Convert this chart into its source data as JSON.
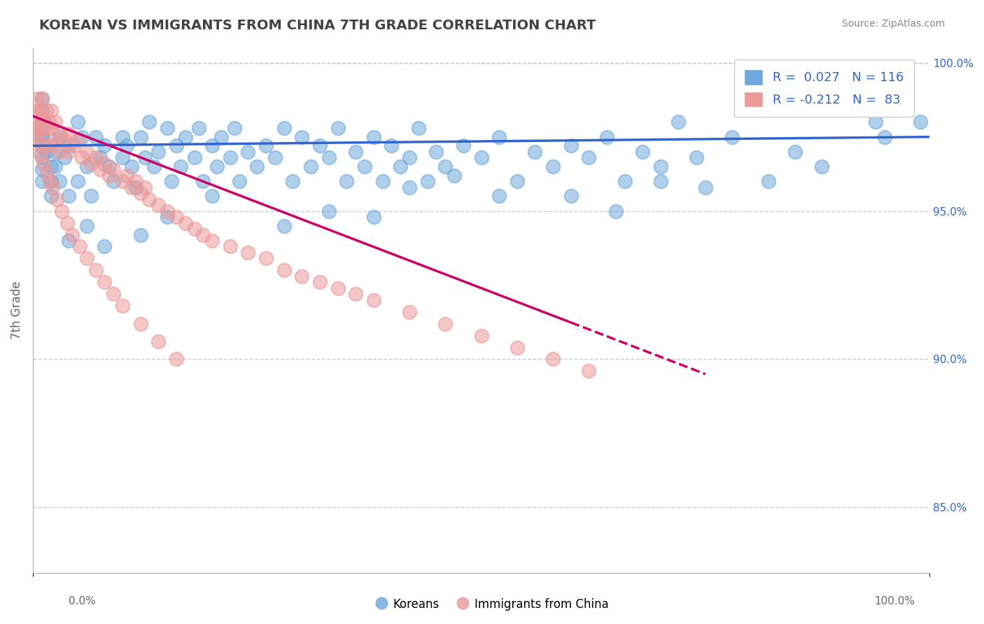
{
  "title": "KOREAN VS IMMIGRANTS FROM CHINA 7TH GRADE CORRELATION CHART",
  "source": "Source: ZipAtlas.com",
  "ylabel": "7th Grade",
  "right_yticks": [
    "85.0%",
    "90.0%",
    "95.0%",
    "100.0%"
  ],
  "right_ytick_vals": [
    0.85,
    0.9,
    0.95,
    1.0
  ],
  "blue_R": 0.027,
  "blue_N": 116,
  "pink_R": -0.212,
  "pink_N": 83,
  "blue_color": "#6fa8dc",
  "pink_color": "#ea9999",
  "blue_line_color": "#3366cc",
  "pink_line_color": "#cc0066",
  "title_color": "#434343",
  "source_color": "#888888",
  "legend_R_color": "#3366cc",
  "background_color": "#ffffff",
  "grid_color": "#cccccc",
  "dot_size": 200,
  "dot_alpha": 0.55,
  "blue_dots_x": [
    0.01,
    0.01,
    0.01,
    0.01,
    0.01,
    0.01,
    0.01,
    0.01,
    0.01,
    0.015,
    0.02,
    0.02,
    0.02,
    0.025,
    0.025,
    0.03,
    0.03,
    0.035,
    0.04,
    0.04,
    0.05,
    0.05,
    0.055,
    0.06,
    0.065,
    0.07,
    0.075,
    0.08,
    0.085,
    0.09,
    0.1,
    0.1,
    0.105,
    0.11,
    0.115,
    0.12,
    0.125,
    0.13,
    0.135,
    0.14,
    0.15,
    0.155,
    0.16,
    0.165,
    0.17,
    0.18,
    0.185,
    0.19,
    0.2,
    0.205,
    0.21,
    0.22,
    0.225,
    0.23,
    0.24,
    0.25,
    0.26,
    0.27,
    0.28,
    0.29,
    0.3,
    0.31,
    0.32,
    0.33,
    0.34,
    0.35,
    0.36,
    0.37,
    0.38,
    0.39,
    0.4,
    0.41,
    0.42,
    0.43,
    0.44,
    0.45,
    0.46,
    0.48,
    0.5,
    0.52,
    0.54,
    0.56,
    0.58,
    0.6,
    0.62,
    0.64,
    0.66,
    0.68,
    0.7,
    0.72,
    0.74,
    0.78,
    0.82,
    0.85,
    0.88,
    0.91,
    0.94,
    0.95,
    0.97,
    0.99,
    0.33,
    0.28,
    0.52,
    0.47,
    0.42,
    0.38,
    0.6,
    0.65,
    0.7,
    0.75,
    0.2,
    0.15,
    0.12,
    0.08,
    0.06,
    0.04
  ],
  "blue_dots_y": [
    0.988,
    0.984,
    0.98,
    0.976,
    0.972,
    0.968,
    0.964,
    0.96,
    0.975,
    0.97,
    0.965,
    0.96,
    0.955,
    0.97,
    0.965,
    0.975,
    0.96,
    0.968,
    0.972,
    0.955,
    0.98,
    0.96,
    0.975,
    0.965,
    0.955,
    0.975,
    0.968,
    0.972,
    0.965,
    0.96,
    0.975,
    0.968,
    0.972,
    0.965,
    0.958,
    0.975,
    0.968,
    0.98,
    0.965,
    0.97,
    0.978,
    0.96,
    0.972,
    0.965,
    0.975,
    0.968,
    0.978,
    0.96,
    0.972,
    0.965,
    0.975,
    0.968,
    0.978,
    0.96,
    0.97,
    0.965,
    0.972,
    0.968,
    0.978,
    0.96,
    0.975,
    0.965,
    0.972,
    0.968,
    0.978,
    0.96,
    0.97,
    0.965,
    0.975,
    0.96,
    0.972,
    0.965,
    0.968,
    0.978,
    0.96,
    0.97,
    0.965,
    0.972,
    0.968,
    0.975,
    0.96,
    0.97,
    0.965,
    0.972,
    0.968,
    0.975,
    0.96,
    0.97,
    0.965,
    0.98,
    0.968,
    0.975,
    0.96,
    0.97,
    0.965,
    0.985,
    0.98,
    0.975,
    0.985,
    0.98,
    0.95,
    0.945,
    0.955,
    0.962,
    0.958,
    0.948,
    0.955,
    0.95,
    0.96,
    0.958,
    0.955,
    0.948,
    0.942,
    0.938,
    0.945,
    0.94
  ],
  "pink_dots_x": [
    0.005,
    0.005,
    0.005,
    0.005,
    0.008,
    0.008,
    0.01,
    0.01,
    0.01,
    0.012,
    0.015,
    0.015,
    0.015,
    0.018,
    0.02,
    0.02,
    0.02,
    0.025,
    0.025,
    0.03,
    0.03,
    0.035,
    0.04,
    0.04,
    0.045,
    0.05,
    0.055,
    0.06,
    0.065,
    0.07,
    0.075,
    0.08,
    0.085,
    0.09,
    0.1,
    0.105,
    0.11,
    0.115,
    0.12,
    0.125,
    0.13,
    0.14,
    0.15,
    0.16,
    0.17,
    0.18,
    0.19,
    0.2,
    0.22,
    0.24,
    0.26,
    0.28,
    0.3,
    0.32,
    0.34,
    0.36,
    0.38,
    0.42,
    0.46,
    0.5,
    0.54,
    0.58,
    0.62,
    0.005,
    0.007,
    0.009,
    0.012,
    0.016,
    0.019,
    0.022,
    0.027,
    0.032,
    0.038,
    0.044,
    0.052,
    0.06,
    0.07,
    0.08,
    0.09,
    0.1,
    0.12,
    0.14,
    0.16
  ],
  "pink_dots_y": [
    0.988,
    0.984,
    0.98,
    0.976,
    0.984,
    0.979,
    0.988,
    0.984,
    0.978,
    0.98,
    0.984,
    0.978,
    0.972,
    0.98,
    0.984,
    0.978,
    0.972,
    0.98,
    0.974,
    0.976,
    0.97,
    0.974,
    0.976,
    0.97,
    0.972,
    0.974,
    0.968,
    0.97,
    0.966,
    0.968,
    0.964,
    0.966,
    0.962,
    0.964,
    0.96,
    0.962,
    0.958,
    0.96,
    0.956,
    0.958,
    0.954,
    0.952,
    0.95,
    0.948,
    0.946,
    0.944,
    0.942,
    0.94,
    0.938,
    0.936,
    0.934,
    0.93,
    0.928,
    0.926,
    0.924,
    0.922,
    0.92,
    0.916,
    0.912,
    0.908,
    0.904,
    0.9,
    0.896,
    0.975,
    0.972,
    0.969,
    0.966,
    0.963,
    0.96,
    0.958,
    0.954,
    0.95,
    0.946,
    0.942,
    0.938,
    0.934,
    0.93,
    0.926,
    0.922,
    0.918,
    0.912,
    0.906,
    0.9
  ],
  "blue_line_x": [
    0.0,
    1.0
  ],
  "blue_line_y_start": 0.972,
  "blue_line_y_end": 0.975,
  "pink_line_x_start": 0.0,
  "pink_line_x_solid_end": 0.6,
  "pink_line_x_end": 0.75,
  "pink_line_y_start": 0.982,
  "pink_line_y_end": 0.895,
  "xmin": 0.0,
  "xmax": 1.0,
  "ymin": 0.828,
  "ymax": 1.005
}
